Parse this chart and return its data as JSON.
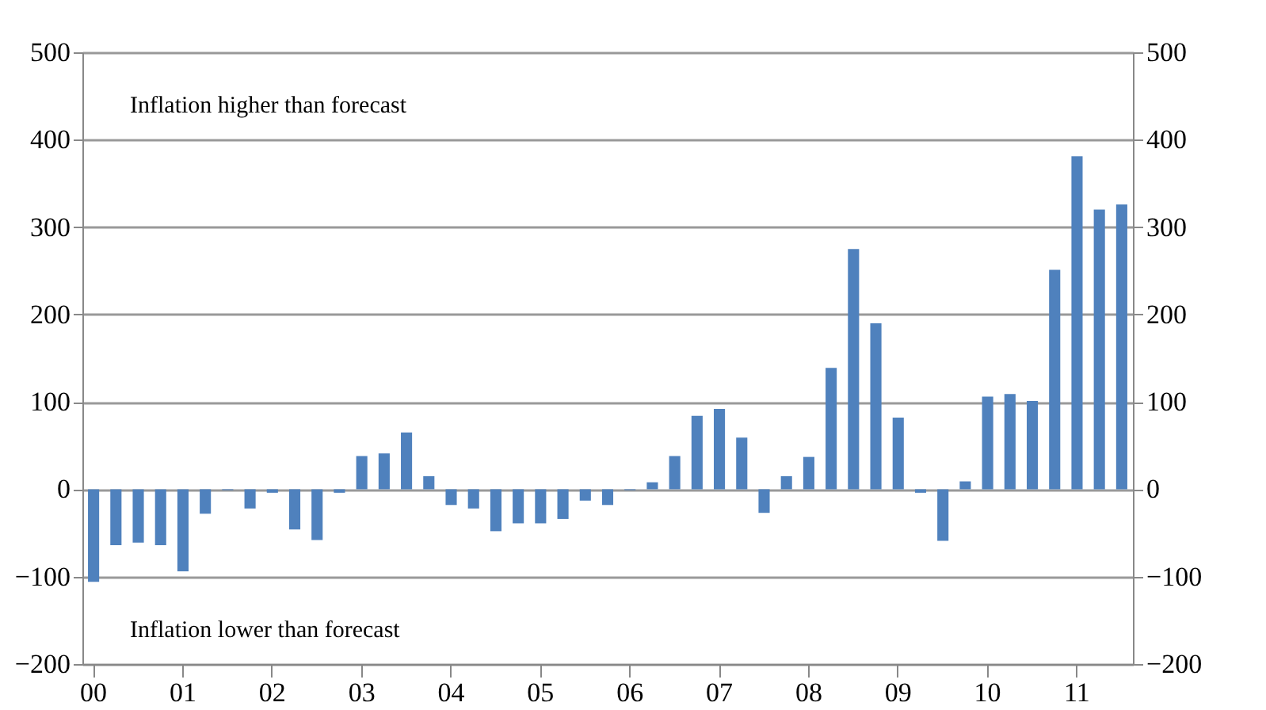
{
  "chart_data": {
    "type": "bar",
    "categories": [
      "00",
      null,
      null,
      null,
      "01",
      null,
      null,
      null,
      "02",
      null,
      null,
      null,
      "03",
      null,
      null,
      null,
      "04",
      null,
      null,
      null,
      "05",
      null,
      null,
      null,
      "06",
      null,
      null,
      null,
      "07",
      null,
      null,
      null,
      "08",
      null,
      null,
      null,
      "09",
      null,
      null,
      null,
      "10",
      null,
      null,
      null,
      "11",
      null,
      null
    ],
    "values": [
      -106,
      -64,
      -61,
      -64,
      -94,
      -28,
      -1,
      -22,
      -4,
      -46,
      -58,
      -4,
      38,
      41,
      65,
      15,
      -18,
      -22,
      -48,
      -39,
      -39,
      -34,
      -13,
      -18,
      -1,
      8,
      38,
      84,
      92,
      59,
      -27,
      15,
      37,
      139,
      275,
      190,
      82,
      -4,
      -59,
      9,
      106,
      109,
      101,
      251,
      381,
      320,
      326
    ],
    "color": "#4f81bd",
    "ylim": [
      -200,
      500
    ],
    "yticks": [
      -200,
      -100,
      0,
      100,
      200,
      300,
      400,
      500
    ],
    "y2lim": [
      -200,
      500
    ],
    "y2ticks": [
      -200,
      -100,
      0,
      100,
      200,
      300,
      400,
      500
    ],
    "grid": "y",
    "annotations": [
      "Inflation higher than forecast",
      "Inflation lower than forecast"
    ]
  }
}
